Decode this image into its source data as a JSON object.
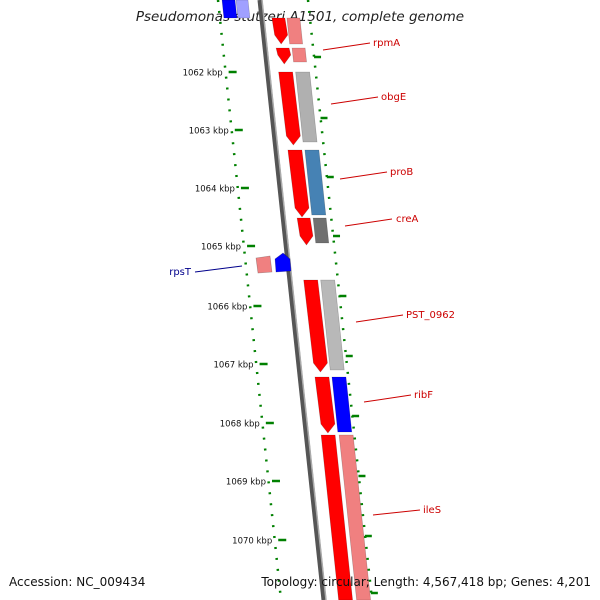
{
  "title": "Pseudomonas stutzeri A1501, complete genome",
  "accession_label": "Accession: NC_009434",
  "summary_label": "Topology: circular; Length: 4,567,418 bp; Genes: 4,201",
  "colors": {
    "forward_feature": "#ff0000",
    "forward_feature_light": "#f08080",
    "reverse_feature": "#0000ff",
    "forward_label": "#cc0000",
    "reverse_label": "#00008b",
    "tick": "#008000",
    "backbone": "#808080"
  },
  "ticks": [
    {
      "label": "1062 kbp",
      "kbp": 1062
    },
    {
      "label": "1063 kbp",
      "kbp": 1063
    },
    {
      "label": "1064 kbp",
      "kbp": 1064
    },
    {
      "label": "1065 kbp",
      "kbp": 1065
    },
    {
      "label": "1066 kbp",
      "kbp": 1066
    },
    {
      "label": "1067 kbp",
      "kbp": 1067
    },
    {
      "label": "1068 kbp",
      "kbp": 1068
    },
    {
      "label": "1069 kbp",
      "kbp": 1069
    },
    {
      "label": "1070 kbp",
      "kbp": 1070
    }
  ],
  "genes": [
    {
      "name": "rpmA",
      "strand": "forward"
    },
    {
      "name": "obgE",
      "strand": "forward"
    },
    {
      "name": "proB",
      "strand": "forward"
    },
    {
      "name": "creA",
      "strand": "forward"
    },
    {
      "name": "rpsT",
      "strand": "reverse"
    },
    {
      "name": "PST_0962",
      "strand": "forward"
    },
    {
      "name": "ribF",
      "strand": "forward"
    },
    {
      "name": "ileS",
      "strand": "forward"
    }
  ]
}
